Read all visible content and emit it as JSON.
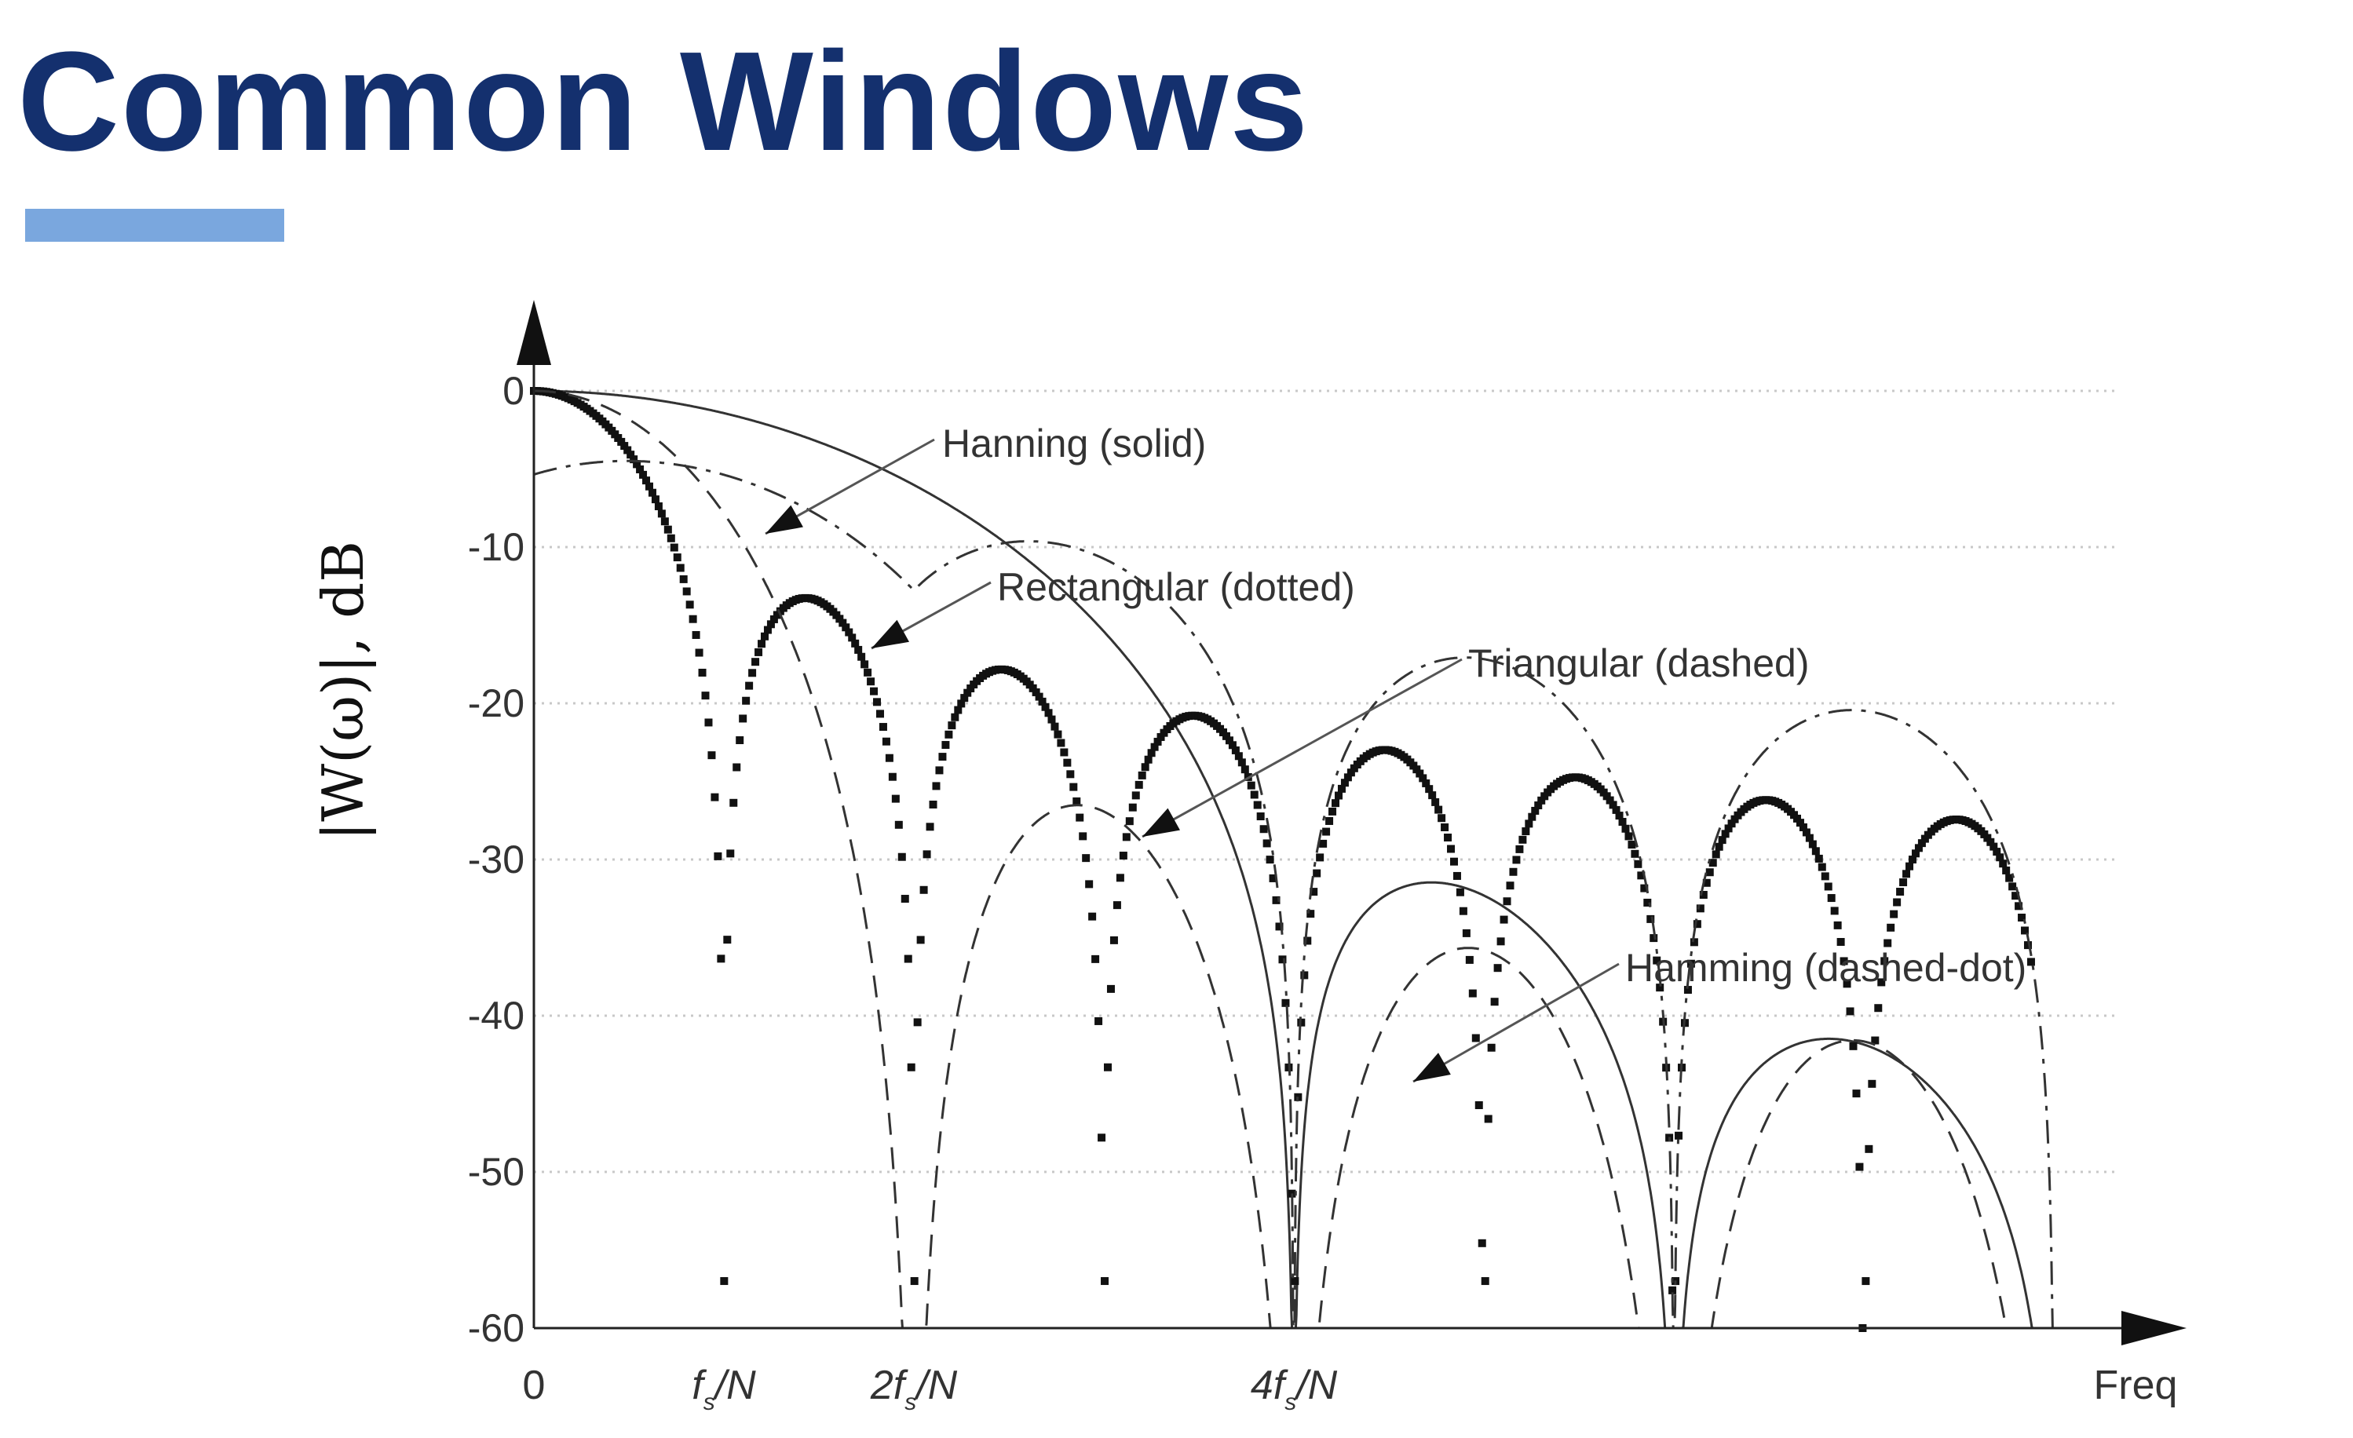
{
  "slide": {
    "title": "Common Windows",
    "accent_color": "#7aa7de",
    "title_color": "#14306e"
  },
  "chart_data": {
    "type": "line",
    "title": "",
    "xlabel": "Freq",
    "ylabel": "|W(ω)|, dB",
    "x_unit": "f_s/N",
    "xlim": [
      0,
      8
    ],
    "ylim": [
      -60,
      0
    ],
    "grid": true,
    "x_ticks": [
      {
        "value": 0,
        "label": "0"
      },
      {
        "value": 1,
        "label": "fs/N"
      },
      {
        "value": 2,
        "label": "2fs/N"
      },
      {
        "value": 4,
        "label": "4fs/N"
      }
    ],
    "y_ticks": [
      0,
      -10,
      -20,
      -30,
      -40,
      -50,
      -60
    ],
    "y_tick_labels": [
      "0",
      "-10",
      "-20",
      "-30",
      "-40",
      "-50",
      "-60"
    ],
    "series": [
      {
        "name": "Hanning (solid)",
        "style": "solid"
      },
      {
        "name": "Rectangular (dotted)",
        "style": "dotted"
      },
      {
        "name": "Triangular (dashed)",
        "style": "dashed"
      },
      {
        "name": "Hamming (dashed-dot)",
        "style": "dashdot"
      }
    ],
    "annotations": [
      {
        "text": "Hanning (solid)",
        "series": "Hanning (solid)"
      },
      {
        "text": "Rectangular (dotted)",
        "series": "Rectangular (dotted)"
      },
      {
        "text": "Triangular (dashed)",
        "series": "Triangular (dashed)"
      },
      {
        "text": "Hamming (dashed-dot)",
        "series": "Hamming (dashed-dot)"
      }
    ]
  }
}
